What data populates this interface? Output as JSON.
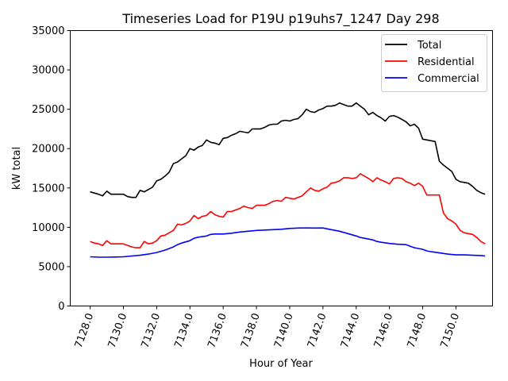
{
  "chart_data": {
    "type": "line",
    "title": "Timeseries Load for P19U p19uhs7_1247  Day 298",
    "xlabel": "Hour of Year",
    "ylabel": "kW total",
    "xlim": [
      7126.8,
      7152.2
    ],
    "ylim": [
      0,
      35000
    ],
    "xticks": [
      7128,
      7130,
      7132,
      7134,
      7136,
      7138,
      7140,
      7142,
      7144,
      7146,
      7148,
      7150
    ],
    "xtick_labels": [
      "7128.0",
      "7130.0",
      "7132.0",
      "7134.0",
      "7136.0",
      "7138.0",
      "7140.0",
      "7142.0",
      "7144.0",
      "7146.0",
      "7148.0",
      "7150.0"
    ],
    "yticks": [
      0,
      5000,
      10000,
      15000,
      20000,
      25000,
      30000,
      35000
    ],
    "ytick_labels": [
      "0",
      "5000",
      "10000",
      "15000",
      "20000",
      "25000",
      "30000",
      "35000"
    ],
    "legend_position": "top-right",
    "series": [
      {
        "name": "Total",
        "color": "#000000",
        "points": [
          [
            7128.0,
            14500
          ],
          [
            7128.5,
            14200
          ],
          [
            7128.75,
            14000
          ],
          [
            7129.0,
            14600
          ],
          [
            7129.25,
            14200
          ],
          [
            7129.5,
            14200
          ],
          [
            7130.0,
            14200
          ],
          [
            7130.25,
            13900
          ],
          [
            7130.5,
            13800
          ],
          [
            7130.75,
            13800
          ],
          [
            7131.0,
            14700
          ],
          [
            7131.25,
            14500
          ],
          [
            7131.5,
            14800
          ],
          [
            7131.75,
            15100
          ],
          [
            7132.0,
            15900
          ],
          [
            7132.25,
            16100
          ],
          [
            7132.5,
            16500
          ],
          [
            7132.75,
            17000
          ],
          [
            7133.0,
            18100
          ],
          [
            7133.25,
            18300
          ],
          [
            7133.5,
            18700
          ],
          [
            7133.75,
            19100
          ],
          [
            7134.0,
            20000
          ],
          [
            7134.25,
            19800
          ],
          [
            7134.5,
            20200
          ],
          [
            7134.75,
            20400
          ],
          [
            7135.0,
            21100
          ],
          [
            7135.25,
            20800
          ],
          [
            7135.5,
            20700
          ],
          [
            7135.75,
            20500
          ],
          [
            7136.0,
            21300
          ],
          [
            7136.25,
            21400
          ],
          [
            7136.5,
            21700
          ],
          [
            7136.75,
            21900
          ],
          [
            7137.0,
            22200
          ],
          [
            7137.25,
            22100
          ],
          [
            7137.5,
            22000
          ],
          [
            7137.75,
            22500
          ],
          [
            7138.0,
            22500
          ],
          [
            7138.25,
            22500
          ],
          [
            7138.5,
            22700
          ],
          [
            7138.75,
            23000
          ],
          [
            7139.0,
            23100
          ],
          [
            7139.25,
            23100
          ],
          [
            7139.5,
            23500
          ],
          [
            7139.75,
            23600
          ],
          [
            7140.0,
            23500
          ],
          [
            7140.25,
            23700
          ],
          [
            7140.5,
            23800
          ],
          [
            7140.75,
            24300
          ],
          [
            7141.0,
            25000
          ],
          [
            7141.25,
            24700
          ],
          [
            7141.5,
            24600
          ],
          [
            7141.75,
            24900
          ],
          [
            7142.0,
            25100
          ],
          [
            7142.25,
            25400
          ],
          [
            7142.5,
            25400
          ],
          [
            7142.75,
            25500
          ],
          [
            7143.0,
            25800
          ],
          [
            7143.25,
            25600
          ],
          [
            7143.5,
            25400
          ],
          [
            7143.75,
            25400
          ],
          [
            7144.0,
            25800
          ],
          [
            7144.25,
            25400
          ],
          [
            7144.5,
            25000
          ],
          [
            7144.75,
            24300
          ],
          [
            7145.0,
            24600
          ],
          [
            7145.25,
            24200
          ],
          [
            7145.5,
            23900
          ],
          [
            7145.75,
            23500
          ],
          [
            7146.0,
            24100
          ],
          [
            7146.25,
            24200
          ],
          [
            7146.5,
            24000
          ],
          [
            7146.75,
            23700
          ],
          [
            7147.0,
            23400
          ],
          [
            7147.25,
            22900
          ],
          [
            7147.5,
            23100
          ],
          [
            7147.75,
            22600
          ],
          [
            7148.0,
            21200
          ],
          [
            7148.25,
            21100
          ],
          [
            7148.5,
            21000
          ],
          [
            7148.75,
            20900
          ],
          [
            7149.0,
            18400
          ],
          [
            7149.25,
            17900
          ],
          [
            7149.5,
            17500
          ],
          [
            7149.75,
            17100
          ],
          [
            7150.0,
            16100
          ],
          [
            7150.25,
            15800
          ],
          [
            7150.5,
            15700
          ],
          [
            7150.75,
            15600
          ],
          [
            7151.0,
            15200
          ],
          [
            7151.25,
            14700
          ],
          [
            7151.5,
            14400
          ],
          [
            7151.75,
            14200
          ]
        ]
      },
      {
        "name": "Residential",
        "color": "#ff0000",
        "points": [
          [
            7128.0,
            8200
          ],
          [
            7128.25,
            8000
          ],
          [
            7128.5,
            7900
          ],
          [
            7128.75,
            7700
          ],
          [
            7129.0,
            8300
          ],
          [
            7129.25,
            7900
          ],
          [
            7129.5,
            7900
          ],
          [
            7130.0,
            7900
          ],
          [
            7130.25,
            7700
          ],
          [
            7130.5,
            7500
          ],
          [
            7130.75,
            7400
          ],
          [
            7131.0,
            7400
          ],
          [
            7131.25,
            8200
          ],
          [
            7131.5,
            7900
          ],
          [
            7131.75,
            8000
          ],
          [
            7132.0,
            8300
          ],
          [
            7132.25,
            8900
          ],
          [
            7132.5,
            9000
          ],
          [
            7132.75,
            9300
          ],
          [
            7133.0,
            9600
          ],
          [
            7133.25,
            10400
          ],
          [
            7133.5,
            10300
          ],
          [
            7133.75,
            10500
          ],
          [
            7134.0,
            10800
          ],
          [
            7134.25,
            11500
          ],
          [
            7134.5,
            11100
          ],
          [
            7134.75,
            11400
          ],
          [
            7135.0,
            11500
          ],
          [
            7135.25,
            12000
          ],
          [
            7135.5,
            11600
          ],
          [
            7135.75,
            11400
          ],
          [
            7136.0,
            11300
          ],
          [
            7136.25,
            12000
          ],
          [
            7136.5,
            12000
          ],
          [
            7136.75,
            12200
          ],
          [
            7137.0,
            12400
          ],
          [
            7137.25,
            12700
          ],
          [
            7137.5,
            12500
          ],
          [
            7137.75,
            12400
          ],
          [
            7138.0,
            12800
          ],
          [
            7138.25,
            12800
          ],
          [
            7138.5,
            12800
          ],
          [
            7138.75,
            13000
          ],
          [
            7139.0,
            13300
          ],
          [
            7139.25,
            13400
          ],
          [
            7139.5,
            13300
          ],
          [
            7139.75,
            13800
          ],
          [
            7140.0,
            13700
          ],
          [
            7140.25,
            13600
          ],
          [
            7140.5,
            13800
          ],
          [
            7140.75,
            14000
          ],
          [
            7141.0,
            14500
          ],
          [
            7141.25,
            15000
          ],
          [
            7141.5,
            14700
          ],
          [
            7141.75,
            14600
          ],
          [
            7142.0,
            14900
          ],
          [
            7142.25,
            15100
          ],
          [
            7142.5,
            15600
          ],
          [
            7142.75,
            15700
          ],
          [
            7143.0,
            15900
          ],
          [
            7143.25,
            16300
          ],
          [
            7143.5,
            16300
          ],
          [
            7143.75,
            16200
          ],
          [
            7144.0,
            16300
          ],
          [
            7144.25,
            16800
          ],
          [
            7144.5,
            16500
          ],
          [
            7144.75,
            16200
          ],
          [
            7145.0,
            15800
          ],
          [
            7145.25,
            16300
          ],
          [
            7145.5,
            16000
          ],
          [
            7145.75,
            15800
          ],
          [
            7146.0,
            15500
          ],
          [
            7146.25,
            16200
          ],
          [
            7146.5,
            16300
          ],
          [
            7146.75,
            16200
          ],
          [
            7147.0,
            15800
          ],
          [
            7147.25,
            15600
          ],
          [
            7147.5,
            15300
          ],
          [
            7147.75,
            15600
          ],
          [
            7148.0,
            15200
          ],
          [
            7148.25,
            14100
          ],
          [
            7148.5,
            14100
          ],
          [
            7148.75,
            14100
          ],
          [
            7149.0,
            14100
          ],
          [
            7149.25,
            11800
          ],
          [
            7149.5,
            11100
          ],
          [
            7149.75,
            10800
          ],
          [
            7150.0,
            10400
          ],
          [
            7150.25,
            9600
          ],
          [
            7150.5,
            9300
          ],
          [
            7150.75,
            9200
          ],
          [
            7151.0,
            9100
          ],
          [
            7151.25,
            8700
          ],
          [
            7151.5,
            8200
          ],
          [
            7151.75,
            7900
          ]
        ]
      },
      {
        "name": "Commercial",
        "color": "#0000ff",
        "points": [
          [
            7128.0,
            6250
          ],
          [
            7128.5,
            6200
          ],
          [
            7129.0,
            6200
          ],
          [
            7129.5,
            6220
          ],
          [
            7130.0,
            6250
          ],
          [
            7130.5,
            6350
          ],
          [
            7131.0,
            6450
          ],
          [
            7131.5,
            6600
          ],
          [
            7132.0,
            6800
          ],
          [
            7132.5,
            7100
          ],
          [
            7133.0,
            7500
          ],
          [
            7133.25,
            7800
          ],
          [
            7133.5,
            8000
          ],
          [
            7134.0,
            8300
          ],
          [
            7134.25,
            8600
          ],
          [
            7134.5,
            8750
          ],
          [
            7135.0,
            8900
          ],
          [
            7135.25,
            9100
          ],
          [
            7135.5,
            9150
          ],
          [
            7136.0,
            9150
          ],
          [
            7136.5,
            9250
          ],
          [
            7137.0,
            9400
          ],
          [
            7137.5,
            9500
          ],
          [
            7138.0,
            9600
          ],
          [
            7138.5,
            9650
          ],
          [
            7139.0,
            9700
          ],
          [
            7139.5,
            9750
          ],
          [
            7140.0,
            9850
          ],
          [
            7140.5,
            9900
          ],
          [
            7141.0,
            9920
          ],
          [
            7141.5,
            9900
          ],
          [
            7142.0,
            9920
          ],
          [
            7142.25,
            9800
          ],
          [
            7142.5,
            9700
          ],
          [
            7143.0,
            9500
          ],
          [
            7143.5,
            9200
          ],
          [
            7144.0,
            8900
          ],
          [
            7144.25,
            8700
          ],
          [
            7144.5,
            8600
          ],
          [
            7145.0,
            8400
          ],
          [
            7145.25,
            8200
          ],
          [
            7145.5,
            8100
          ],
          [
            7146.0,
            7950
          ],
          [
            7146.5,
            7850
          ],
          [
            7147.0,
            7800
          ],
          [
            7147.25,
            7600
          ],
          [
            7147.5,
            7400
          ],
          [
            7148.0,
            7200
          ],
          [
            7148.25,
            7000
          ],
          [
            7148.5,
            6900
          ],
          [
            7149.0,
            6750
          ],
          [
            7149.5,
            6600
          ],
          [
            7150.0,
            6500
          ],
          [
            7150.5,
            6500
          ],
          [
            7151.0,
            6450
          ],
          [
            7151.5,
            6420
          ],
          [
            7151.75,
            6350
          ]
        ]
      }
    ]
  }
}
